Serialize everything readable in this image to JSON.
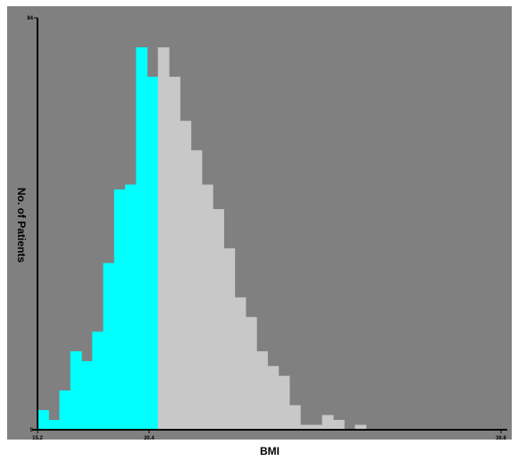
{
  "chart_data": {
    "type": "bar",
    "title": "",
    "xlabel": "BMI",
    "ylabel": "No. of Patients",
    "x_ticks": [
      "15.2",
      "20.4",
      "36.8"
    ],
    "y_ticks": [
      "0",
      "84"
    ],
    "xlim": [
      15.2,
      36.8
    ],
    "ylim": [
      0,
      84
    ],
    "bin_start": 15.2,
    "bin_width": 0.51,
    "values": [
      4,
      2,
      8,
      16,
      14,
      20,
      34,
      49,
      50,
      78,
      72,
      78,
      72,
      63,
      57,
      50,
      45,
      37,
      27,
      23,
      16,
      13,
      11,
      5,
      1,
      1,
      3,
      2,
      0,
      1
    ],
    "highlight_below": 20.4,
    "colors": {
      "background": "#808080",
      "highlight": "#00ffff",
      "bars": "#c8c8c8",
      "axis": "#000000"
    },
    "grid": false,
    "legend": "none"
  }
}
